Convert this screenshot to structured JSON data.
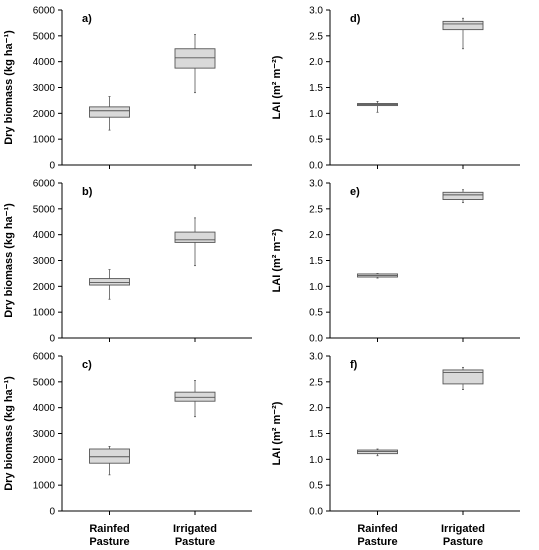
{
  "chart_data": [
    {
      "type": "box",
      "panel": "a)",
      "ylabel": "Dry biomass (kg ha⁻¹)",
      "ylim": [
        0,
        6000
      ],
      "yticks": [
        "0",
        "1000",
        "2000",
        "3000",
        "4000",
        "5000",
        "6000"
      ],
      "categories": [
        "Rainfed Pasture",
        "Irrigated Pasture"
      ],
      "boxes": [
        {
          "min": 1350,
          "q1": 1850,
          "median": 2100,
          "q3": 2250,
          "max": 2650
        },
        {
          "min": 2800,
          "q1": 3750,
          "median": 4150,
          "q3": 4500,
          "max": 5050
        }
      ]
    },
    {
      "type": "box",
      "panel": "b)",
      "ylabel": "Dry biomass (kg ha⁻¹)",
      "ylim": [
        0,
        6000
      ],
      "yticks": [
        "0",
        "1000",
        "2000",
        "3000",
        "4000",
        "5000",
        "6000"
      ],
      "categories": [
        "Rainfed Pasture",
        "Irrigated Pasture"
      ],
      "boxes": [
        {
          "min": 1500,
          "q1": 2050,
          "median": 2150,
          "q3": 2300,
          "max": 2650
        },
        {
          "min": 2800,
          "q1": 3700,
          "median": 3800,
          "q3": 4100,
          "max": 4650
        }
      ]
    },
    {
      "type": "box",
      "panel": "c)",
      "ylabel": "Dry biomass (kg ha⁻¹)",
      "ylim": [
        0,
        6000
      ],
      "yticks": [
        "0",
        "1000",
        "2000",
        "3000",
        "4000",
        "5000",
        "6000"
      ],
      "categories": [
        "Rainfed Pasture",
        "Irrigated Pasture"
      ],
      "boxes": [
        {
          "min": 1400,
          "q1": 1850,
          "median": 2100,
          "q3": 2400,
          "max": 2500
        },
        {
          "min": 3650,
          "q1": 4250,
          "median": 4400,
          "q3": 4600,
          "max": 5050
        }
      ]
    },
    {
      "type": "box",
      "panel": "d)",
      "ylabel": "LAI (m² m⁻²)",
      "ylim": [
        0,
        3.0
      ],
      "yticks": [
        "0.0",
        "0.5",
        "1.0",
        "1.5",
        "2.0",
        "2.5",
        "3.0"
      ],
      "categories": [
        "Rainfed Pasture",
        "Irrigated Pasture"
      ],
      "boxes": [
        {
          "min": 1.02,
          "q1": 1.15,
          "median": 1.17,
          "q3": 1.19,
          "max": 1.23
        },
        {
          "min": 2.25,
          "q1": 2.62,
          "median": 2.73,
          "q3": 2.78,
          "max": 2.84
        }
      ]
    },
    {
      "type": "box",
      "panel": "e)",
      "ylabel": "LAI (m² m⁻²)",
      "ylim": [
        0,
        3.0
      ],
      "yticks": [
        "0.0",
        "0.5",
        "1.0",
        "1.5",
        "2.0",
        "2.5",
        "3.0"
      ],
      "categories": [
        "Rainfed Pasture",
        "Irrigated Pasture"
      ],
      "boxes": [
        {
          "min": 1.16,
          "q1": 1.18,
          "median": 1.21,
          "q3": 1.24,
          "max": 1.25
        },
        {
          "min": 2.62,
          "q1": 2.68,
          "median": 2.77,
          "q3": 2.82,
          "max": 2.87
        }
      ]
    },
    {
      "type": "box",
      "panel": "f)",
      "ylabel": "LAI (m² m⁻²)",
      "ylim": [
        0,
        3.0
      ],
      "yticks": [
        "0.0",
        "0.5",
        "1.0",
        "1.5",
        "2.0",
        "2.5",
        "3.0"
      ],
      "categories": [
        "Rainfed Pasture",
        "Irrigated Pasture"
      ],
      "boxes": [
        {
          "min": 1.07,
          "q1": 1.11,
          "median": 1.15,
          "q3": 1.18,
          "max": 1.2
        },
        {
          "min": 2.35,
          "q1": 2.46,
          "median": 2.68,
          "q3": 2.73,
          "max": 2.78
        }
      ]
    }
  ],
  "category_labels": [
    {
      "line1": "Rainfed",
      "line2": "Pasture"
    },
    {
      "line1": "Irrigated",
      "line2": "Pasture"
    }
  ],
  "colors": {
    "box_fill": "#d9d9d9",
    "box_stroke": "#555555",
    "axis": "#000000"
  }
}
